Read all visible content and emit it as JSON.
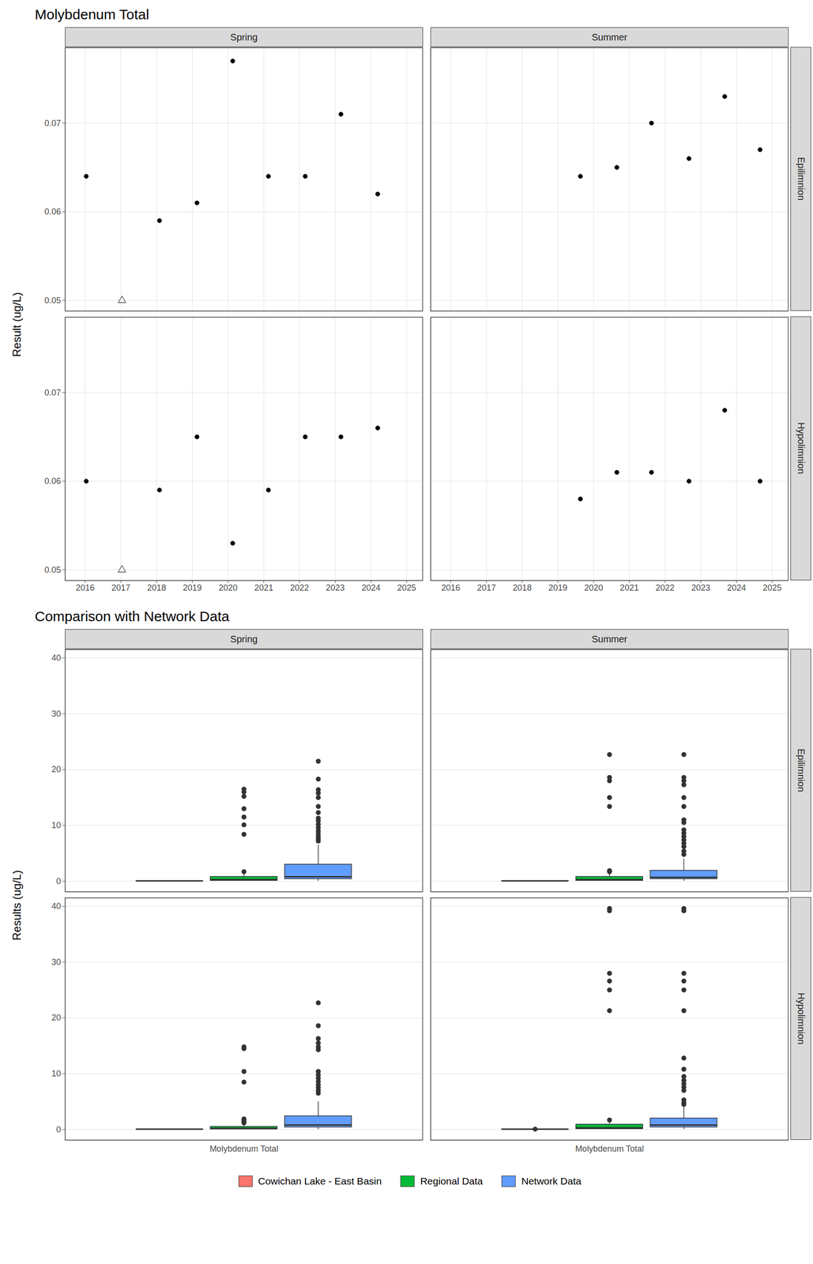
{
  "chart_data": [
    {
      "type": "scatter",
      "title": "Molybdenum Total",
      "ylabel": "Result (ug/L)",
      "columns": [
        "Spring",
        "Summer"
      ],
      "rows": [
        "Epilimnion",
        "Hypolimnion"
      ],
      "xlim": [
        2015.44,
        2025.45
      ],
      "xticks": [
        2016,
        2017,
        2018,
        2019,
        2020,
        2021,
        2022,
        2023,
        2024,
        2025
      ],
      "ylim": [
        0.0488,
        0.0785
      ],
      "yticks": [
        0.05,
        0.06,
        0.07
      ],
      "grid": true,
      "panels": [
        {
          "column": "Spring",
          "row": "Epilimnion",
          "series": [
            {
              "marker": "circle",
              "color": "#000000",
              "x": [
                2016.03,
                2018.08,
                2019.13,
                2020.13,
                2021.13,
                2022.16,
                2023.16,
                2024.19
              ],
              "values": [
                0.064,
                0.059,
                0.061,
                0.077,
                0.064,
                0.064,
                0.071,
                0.062
              ]
            },
            {
              "marker": "triangle-open",
              "color": "#000000",
              "x": [
                2017.03
              ],
              "values": [
                0.05
              ]
            }
          ]
        },
        {
          "column": "Summer",
          "row": "Epilimnion",
          "series": [
            {
              "marker": "circle",
              "color": "#000000",
              "x": [
                2019.63,
                2020.65,
                2021.62,
                2022.67,
                2023.67,
                2024.66
              ],
              "values": [
                0.064,
                0.065,
                0.07,
                0.066,
                0.073,
                0.067
              ]
            }
          ]
        },
        {
          "column": "Spring",
          "row": "Hypolimnion",
          "series": [
            {
              "marker": "circle",
              "color": "#000000",
              "x": [
                2016.03,
                2018.08,
                2019.13,
                2020.13,
                2021.13,
                2022.16,
                2023.16,
                2024.19
              ],
              "values": [
                0.06,
                0.059,
                0.065,
                0.053,
                0.059,
                0.065,
                0.065,
                0.066
              ]
            },
            {
              "marker": "triangle-open",
              "color": "#000000",
              "x": [
                2017.03
              ],
              "values": [
                0.05
              ]
            }
          ]
        },
        {
          "column": "Summer",
          "row": "Hypolimnion",
          "series": [
            {
              "marker": "circle",
              "color": "#000000",
              "x": [
                2019.63,
                2020.65,
                2021.62,
                2022.67,
                2023.67,
                2024.66
              ],
              "values": [
                0.058,
                0.061,
                0.061,
                0.06,
                0.068,
                0.06
              ]
            }
          ]
        }
      ]
    },
    {
      "type": "boxplot",
      "title": "Comparison with Network Data",
      "ylabel": "Results (ug/L)",
      "columns": [
        "Spring",
        "Summer"
      ],
      "rows": [
        "Epilimnion",
        "Hypolimnion"
      ],
      "categories": [
        "Molybdenum Total"
      ],
      "ylim": [
        -1.9,
        41.5
      ],
      "yticks": [
        0,
        10,
        20,
        30,
        40
      ],
      "grid": true,
      "legend": "bottom",
      "series": [
        {
          "name": "Cowichan Lake - East Basin",
          "color": "#F8766D"
        },
        {
          "name": "Regional Data",
          "color": "#00BA38"
        },
        {
          "name": "Network Data",
          "color": "#619CFF"
        }
      ],
      "panels": [
        {
          "column": "Spring",
          "row": "Epilimnion",
          "boxes": [
            {
              "q1": 0.059,
              "median": 0.064,
              "q3": 0.064,
              "whisker_low": 0.05,
              "whisker_high": 0.077,
              "outliers": []
            },
            {
              "q1": 0.1,
              "median": 0.3,
              "q3": 0.8,
              "whisker_low": 0.02,
              "whisker_high": 1.3,
              "outliers": [
                16.5,
                16.0,
                15.2,
                13.0,
                11.5,
                10.1,
                8.4,
                1.7
              ]
            },
            {
              "q1": 0.4,
              "median": 0.8,
              "q3": 3.0,
              "whisker_low": 0.02,
              "whisker_high": 6.5,
              "outliers": [
                21.5,
                18.3,
                16.4,
                15.8,
                15.0,
                13.4,
                12.3,
                11.3,
                10.8,
                10.2,
                9.6,
                9.0,
                8.5,
                8.0,
                7.6,
                7.2
              ]
            }
          ]
        },
        {
          "column": "Summer",
          "row": "Epilimnion",
          "boxes": [
            {
              "q1": 0.065,
              "median": 0.066,
              "q3": 0.069,
              "whisker_low": 0.064,
              "whisker_high": 0.073,
              "outliers": []
            },
            {
              "q1": 0.1,
              "median": 0.3,
              "q3": 0.8,
              "whisker_low": 0.02,
              "whisker_high": 1.5,
              "outliers": [
                22.7,
                18.6,
                18.0,
                15.0,
                13.4,
                1.9,
                1.7
              ]
            },
            {
              "q1": 0.4,
              "median": 0.7,
              "q3": 1.9,
              "whisker_low": 0.02,
              "whisker_high": 4.0,
              "outliers": [
                22.7,
                18.6,
                18.0,
                17.3,
                15.0,
                13.4,
                11.0,
                10.5,
                9.2,
                8.6,
                8.0,
                7.4,
                6.8,
                6.2,
                5.4,
                4.8
              ]
            }
          ]
        },
        {
          "column": "Spring",
          "row": "Hypolimnion",
          "boxes": [
            {
              "q1": 0.059,
              "median": 0.0595,
              "q3": 0.065,
              "whisker_low": 0.05,
              "whisker_high": 0.066,
              "outliers": []
            },
            {
              "q1": 0.05,
              "median": 0.2,
              "q3": 0.5,
              "whisker_low": 0.01,
              "whisker_high": 1.0,
              "outliers": [
                14.8,
                14.5,
                10.4,
                8.5,
                1.9,
                1.6,
                1.4,
                1.2
              ]
            },
            {
              "q1": 0.4,
              "median": 0.8,
              "q3": 2.4,
              "whisker_low": 0.01,
              "whisker_high": 5.0,
              "outliers": [
                22.7,
                18.6,
                16.3,
                15.5,
                14.8,
                14.3,
                10.4,
                9.8,
                9.2,
                8.6,
                8.0,
                7.5,
                7.0,
                6.5
              ]
            }
          ]
        },
        {
          "column": "Summer",
          "row": "Hypolimnion",
          "boxes": [
            {
              "q1": 0.06,
              "median": 0.0605,
              "q3": 0.061,
              "whisker_low": 0.058,
              "whisker_high": 0.061,
              "outliers": [
                0.068
              ]
            },
            {
              "q1": 0.1,
              "median": 0.3,
              "q3": 0.9,
              "whisker_low": 0.02,
              "whisker_high": 1.6,
              "outliers": [
                39.6,
                39.2,
                28.0,
                26.6,
                25.0,
                21.3,
                1.7
              ]
            },
            {
              "q1": 0.4,
              "median": 0.8,
              "q3": 2.0,
              "whisker_low": 0.02,
              "whisker_high": 4.2,
              "outliers": [
                39.6,
                39.2,
                28.0,
                26.6,
                25.0,
                21.3,
                12.8,
                10.8,
                9.5,
                8.8,
                8.2,
                7.6,
                7.0,
                5.3,
                4.8,
                4.5
              ]
            }
          ]
        }
      ]
    }
  ]
}
